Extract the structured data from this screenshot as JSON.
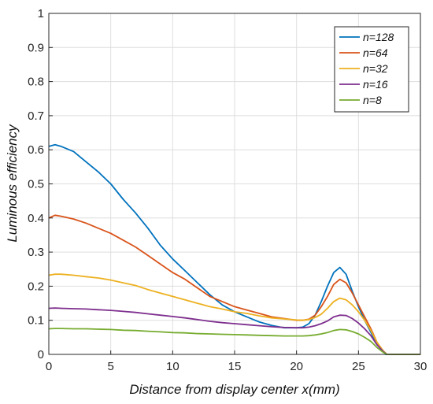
{
  "chart_data": {
    "type": "line",
    "xlabel": "Distance from display center x(mm)",
    "ylabel": "Luminous efficiency",
    "xlim": [
      0,
      30
    ],
    "ylim": [
      0,
      1
    ],
    "xticks": [
      0,
      5,
      10,
      15,
      20,
      25,
      30
    ],
    "yticks": [
      0,
      0.1,
      0.2,
      0.3,
      0.4,
      0.5,
      0.6,
      0.7,
      0.8,
      0.9,
      1
    ],
    "grid": true,
    "legend_position": "top-right",
    "series": [
      {
        "name": "n=128",
        "color": "#0072BD",
        "x": [
          0,
          0.5,
          1,
          2,
          3,
          4,
          5,
          6,
          7,
          8,
          9,
          10,
          11,
          12,
          13,
          14,
          15,
          16,
          17,
          18,
          19,
          20,
          20.5,
          21,
          21.5,
          22,
          22.5,
          23,
          23.5,
          24,
          24.5,
          25,
          25.5,
          26,
          26.5,
          27,
          27.2,
          27.5,
          28,
          29,
          30
        ],
        "y": [
          0.61,
          0.615,
          0.61,
          0.595,
          0.565,
          0.535,
          0.5,
          0.455,
          0.415,
          0.37,
          0.32,
          0.28,
          0.245,
          0.21,
          0.175,
          0.145,
          0.125,
          0.11,
          0.095,
          0.085,
          0.078,
          0.078,
          0.08,
          0.09,
          0.115,
          0.155,
          0.2,
          0.24,
          0.255,
          0.235,
          0.185,
          0.14,
          0.1,
          0.065,
          0.03,
          0.008,
          0,
          0,
          0,
          0,
          0
        ]
      },
      {
        "name": "n=64",
        "color": "#D95319",
        "x": [
          0,
          0.5,
          1,
          2,
          3,
          4,
          5,
          6,
          7,
          8,
          9,
          10,
          11,
          12,
          13,
          14,
          15,
          16,
          17,
          18,
          19,
          20,
          20.5,
          21,
          21.5,
          22,
          22.5,
          23,
          23.5,
          24,
          24.5,
          25,
          25.5,
          26,
          26.5,
          27,
          27.3,
          27.5,
          28,
          29,
          30
        ],
        "y": [
          0.4,
          0.408,
          0.405,
          0.397,
          0.385,
          0.37,
          0.355,
          0.335,
          0.315,
          0.29,
          0.265,
          0.24,
          0.22,
          0.195,
          0.17,
          0.155,
          0.14,
          0.13,
          0.12,
          0.11,
          0.105,
          0.1,
          0.1,
          0.103,
          0.115,
          0.14,
          0.17,
          0.205,
          0.22,
          0.21,
          0.18,
          0.145,
          0.11,
          0.075,
          0.035,
          0.01,
          0,
          0,
          0,
          0,
          0
        ]
      },
      {
        "name": "n=32",
        "color": "#EDB120",
        "x": [
          0,
          0.5,
          1,
          2,
          3,
          4,
          5,
          6,
          7,
          8,
          9,
          10,
          11,
          12,
          13,
          14,
          15,
          16,
          17,
          18,
          19,
          20,
          20.5,
          21,
          21.5,
          22,
          22.5,
          23,
          23.5,
          24,
          24.5,
          25,
          25.5,
          26,
          26.5,
          27,
          27.3,
          27.5,
          28,
          29,
          30
        ],
        "y": [
          0.232,
          0.235,
          0.235,
          0.232,
          0.228,
          0.224,
          0.218,
          0.21,
          0.202,
          0.19,
          0.18,
          0.17,
          0.16,
          0.15,
          0.14,
          0.133,
          0.125,
          0.12,
          0.113,
          0.107,
          0.104,
          0.101,
          0.1,
          0.102,
          0.108,
          0.118,
          0.135,
          0.155,
          0.165,
          0.16,
          0.145,
          0.125,
          0.1,
          0.07,
          0.035,
          0.01,
          0,
          0,
          0,
          0,
          0
        ]
      },
      {
        "name": "n=16",
        "color": "#7E2F8E",
        "x": [
          0,
          0.5,
          1,
          2,
          3,
          4,
          5,
          6,
          7,
          8,
          9,
          10,
          11,
          12,
          13,
          14,
          15,
          16,
          17,
          18,
          19,
          20,
          20.5,
          21,
          21.5,
          22,
          22.5,
          23,
          23.5,
          24,
          24.5,
          25,
          25.5,
          26,
          26.5,
          27,
          27.3,
          27.5,
          28,
          29,
          30
        ],
        "y": [
          0.135,
          0.136,
          0.135,
          0.134,
          0.133,
          0.131,
          0.129,
          0.126,
          0.123,
          0.119,
          0.115,
          0.111,
          0.107,
          0.102,
          0.097,
          0.093,
          0.09,
          0.087,
          0.084,
          0.081,
          0.079,
          0.078,
          0.078,
          0.08,
          0.084,
          0.09,
          0.098,
          0.11,
          0.115,
          0.114,
          0.105,
          0.092,
          0.075,
          0.055,
          0.028,
          0.008,
          0,
          0,
          0,
          0,
          0
        ]
      },
      {
        "name": "n=8",
        "color": "#77AC30",
        "x": [
          0,
          0.5,
          1,
          2,
          3,
          4,
          5,
          6,
          7,
          8,
          9,
          10,
          11,
          12,
          13,
          14,
          15,
          16,
          17,
          18,
          19,
          20,
          20.5,
          21,
          21.5,
          22,
          22.5,
          23,
          23.5,
          24,
          24.5,
          25,
          25.5,
          26,
          26.5,
          27,
          27.3,
          27.5,
          28,
          29,
          30
        ],
        "y": [
          0.075,
          0.076,
          0.076,
          0.075,
          0.075,
          0.074,
          0.073,
          0.071,
          0.07,
          0.068,
          0.066,
          0.064,
          0.063,
          0.061,
          0.06,
          0.059,
          0.058,
          0.057,
          0.056,
          0.055,
          0.054,
          0.054,
          0.054,
          0.055,
          0.057,
          0.06,
          0.064,
          0.07,
          0.073,
          0.072,
          0.067,
          0.06,
          0.05,
          0.038,
          0.02,
          0.006,
          0,
          0,
          0,
          0,
          0
        ]
      }
    ]
  }
}
